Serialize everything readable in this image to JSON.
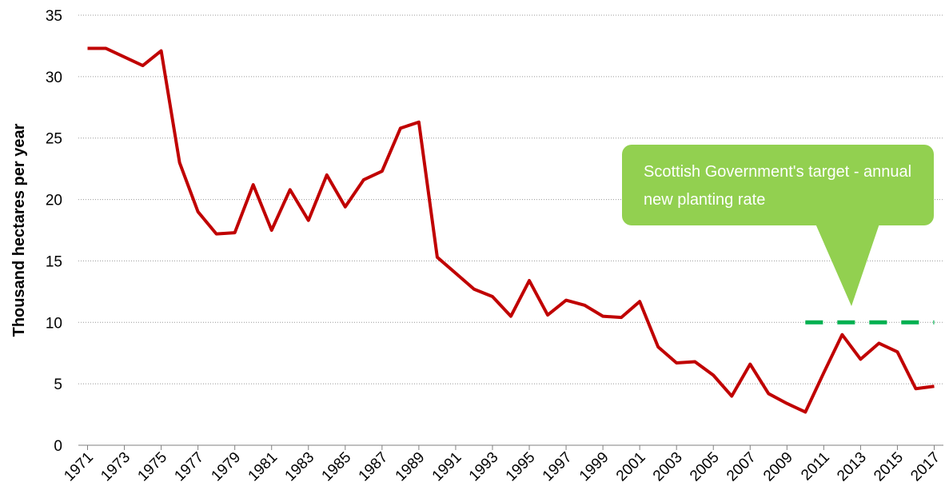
{
  "chart_data": {
    "type": "line",
    "y_label": "Thousand hectares per year",
    "annotation": "Scottish Government's target - annual new planting rate",
    "x": [
      1971,
      1972,
      1973,
      1974,
      1975,
      1976,
      1977,
      1978,
      1979,
      1980,
      1981,
      1982,
      1983,
      1984,
      1985,
      1986,
      1987,
      1988,
      1989,
      1990,
      1991,
      1992,
      1993,
      1994,
      1995,
      1996,
      1997,
      1998,
      1999,
      2000,
      2001,
      2002,
      2003,
      2004,
      2005,
      2006,
      2007,
      2008,
      2009,
      2010,
      2011,
      2012,
      2013,
      2014,
      2015,
      2016,
      2017
    ],
    "series": [
      {
        "color": "#c00000",
        "dashed": false,
        "values": [
          32.3,
          32.3,
          31.6,
          30.9,
          32.1,
          23.0,
          19.0,
          17.2,
          17.3,
          21.2,
          17.5,
          20.8,
          18.3,
          22.0,
          19.4,
          21.6,
          22.3,
          25.8,
          26.3,
          15.3,
          14.0,
          12.7,
          12.1,
          10.5,
          13.4,
          10.6,
          11.8,
          11.4,
          10.5,
          10.4,
          11.7,
          8.0,
          6.7,
          6.8,
          5.7,
          4.0,
          6.6,
          4.2,
          3.4,
          2.7,
          5.9,
          9.0,
          7.0,
          8.3,
          7.6,
          4.6,
          4.8
        ]
      },
      {
        "color": "#00b050",
        "dashed": true,
        "values": [
          null,
          null,
          null,
          null,
          null,
          null,
          null,
          null,
          null,
          null,
          null,
          null,
          null,
          null,
          null,
          null,
          null,
          null,
          null,
          null,
          null,
          null,
          null,
          null,
          null,
          null,
          null,
          null,
          null,
          null,
          null,
          null,
          null,
          null,
          null,
          null,
          null,
          null,
          null,
          10,
          10,
          10,
          10,
          10,
          10,
          10,
          10
        ]
      }
    ],
    "xlim": [
      1970.5,
      2017.5
    ],
    "xticks": [
      1971,
      1973,
      1975,
      1977,
      1979,
      1981,
      1983,
      1985,
      1987,
      1989,
      1991,
      1993,
      1995,
      1997,
      1999,
      2001,
      2003,
      2005,
      2007,
      2009,
      2011,
      2013,
      2015,
      2017
    ],
    "ylim": [
      0,
      35
    ],
    "yticks": [
      0,
      5,
      10,
      15,
      20,
      25,
      30,
      35
    ],
    "grid": true
  }
}
